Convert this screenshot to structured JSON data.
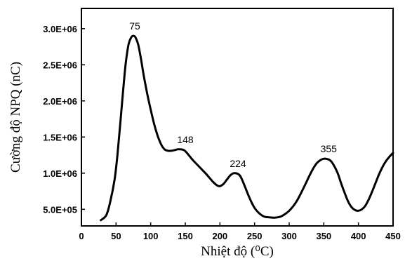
{
  "chart_data": {
    "type": "line",
    "xlabel": "Nhiệt độ (⁰C)",
    "ylabel": "Cường độ NPQ (nC)",
    "xlim": [
      0,
      450
    ],
    "ylim": [
      270000,
      3280000
    ],
    "xticks": [
      0,
      50,
      100,
      150,
      200,
      250,
      300,
      350,
      400,
      450
    ],
    "xtick_labels": [
      "0",
      "50",
      "100",
      "150",
      "200",
      "250",
      "300",
      "350",
      "400",
      "450"
    ],
    "yticks": [
      500000,
      1000000,
      1500000,
      2000000,
      2500000,
      3000000
    ],
    "ytick_labels": [
      "5.0E+05",
      "1.0E+06",
      "1.5E+06",
      "2.0E+06",
      "2.5E+06",
      "3.0E+06"
    ],
    "grid": false,
    "legend": "none",
    "line_color": "#000000",
    "annotations": [
      {
        "text": "75",
        "x": 75,
        "y": 2900000
      },
      {
        "text": "148",
        "x": 148,
        "y": 1330000
      },
      {
        "text": "224",
        "x": 224,
        "y": 1000000
      },
      {
        "text": "355",
        "x": 355,
        "y": 1200000
      }
    ],
    "series": [
      {
        "x": [
          28,
          36,
          42,
          48,
          52,
          56,
          60,
          64,
          68,
          72,
          75,
          78,
          82,
          86,
          90,
          95,
          100,
          105,
          110,
          115,
          120,
          125,
          130,
          135,
          140,
          148,
          155,
          160,
          170,
          180,
          190,
          196,
          200,
          205,
          210,
          215,
          220,
          226,
          230,
          235,
          240,
          245,
          250,
          255,
          260,
          265,
          270,
          278,
          285,
          290,
          300,
          310,
          320,
          325,
          330,
          335,
          340,
          345,
          350,
          355,
          360,
          365,
          370,
          375,
          380,
          385,
          390,
          395,
          400,
          405,
          410,
          415,
          420,
          425,
          430,
          435,
          440,
          445,
          450
        ],
        "y": [
          350000,
          420000,
          620000,
          920000,
          1250000,
          1680000,
          2120000,
          2520000,
          2780000,
          2880000,
          2900000,
          2880000,
          2780000,
          2580000,
          2350000,
          2100000,
          1880000,
          1680000,
          1520000,
          1400000,
          1330000,
          1310000,
          1310000,
          1320000,
          1330000,
          1320000,
          1250000,
          1190000,
          1090000,
          990000,
          880000,
          830000,
          820000,
          850000,
          910000,
          970000,
          1000000,
          990000,
          950000,
          840000,
          720000,
          610000,
          520000,
          460000,
          420000,
          395000,
          390000,
          385000,
          392000,
          410000,
          480000,
          600000,
          780000,
          880000,
          980000,
          1070000,
          1140000,
          1180000,
          1200000,
          1195000,
          1170000,
          1100000,
          1000000,
          860000,
          730000,
          610000,
          530000,
          490000,
          480000,
          500000,
          550000,
          640000,
          750000,
          870000,
          990000,
          1090000,
          1170000,
          1230000,
          1280000
        ]
      }
    ]
  }
}
